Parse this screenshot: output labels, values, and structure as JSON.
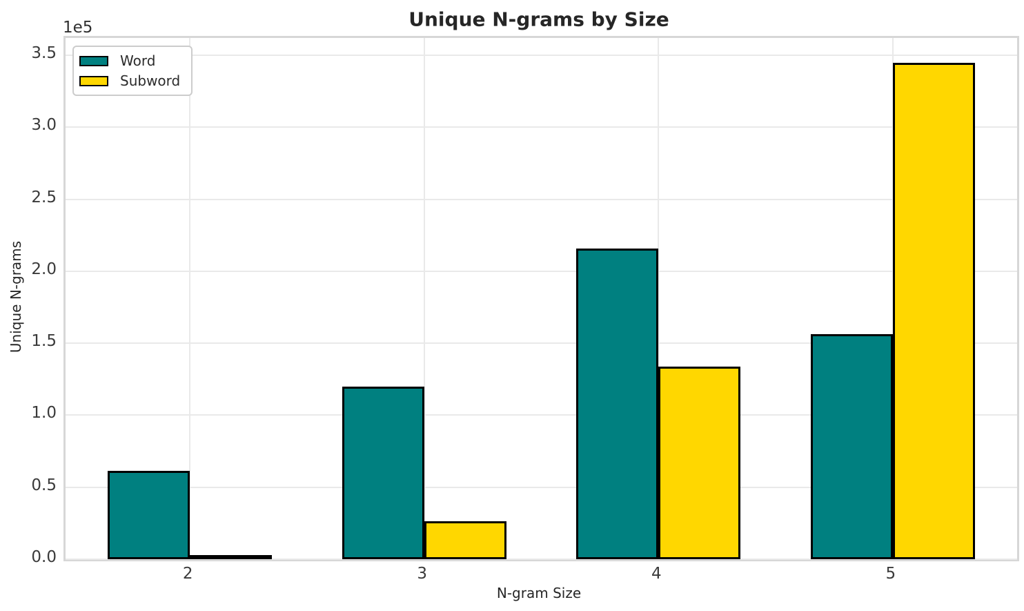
{
  "chart_data": {
    "type": "bar",
    "title": "Unique N-grams by Size",
    "xlabel": "N-gram Size",
    "ylabel": "Unique N-grams",
    "y_offset_label": "1e5",
    "categories": [
      "2",
      "3",
      "4",
      "5"
    ],
    "series": [
      {
        "name": "Word",
        "color": "#008080",
        "values": [
          61500,
          120000,
          216000,
          156500
        ]
      },
      {
        "name": "Subword",
        "color": "#FFD700",
        "values": [
          3000,
          26500,
          134000,
          344500
        ]
      }
    ],
    "bar_edge_color": "#000000",
    "bar_width_fraction": 0.35,
    "y_ticks": [
      0.0,
      0.5,
      1.0,
      1.5,
      2.0,
      2.5,
      3.0,
      3.5
    ],
    "y_tick_labels": [
      "0.0",
      "0.5",
      "1.0",
      "1.5",
      "2.0",
      "2.5",
      "3.0",
      "3.5"
    ],
    "y_scale": 100000,
    "ylim": [
      0,
      362000
    ],
    "grid": true,
    "grid_color": "#e9e9e9",
    "spine_color": "#d7d7d7",
    "legend_position": "upper-left",
    "background": "#ffffff"
  }
}
